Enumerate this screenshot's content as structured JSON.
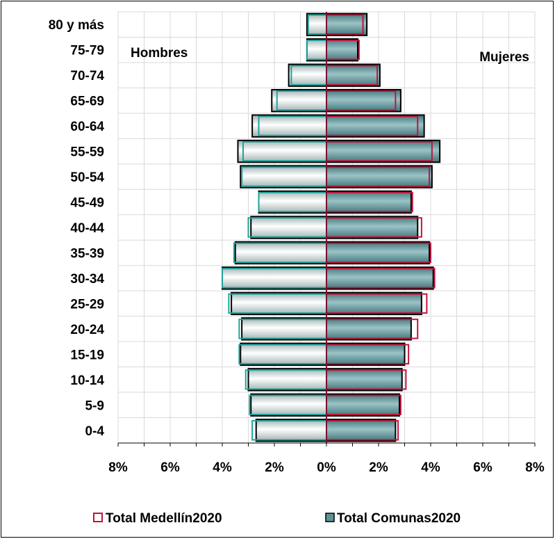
{
  "chart_data": {
    "type": "bar",
    "orientation": "horizontal",
    "subtype": "population-pyramid",
    "categories": [
      "0-4",
      "5-9",
      "10-14",
      "15-19",
      "20-24",
      "25-29",
      "30-34",
      "35-39",
      "40-44",
      "45-49",
      "50-54",
      "55-59",
      "60-64",
      "65-69",
      "70-74",
      "75-79",
      "80 y más"
    ],
    "side_labels": {
      "left": "Hombres",
      "right": "Mujeres"
    },
    "x_ticks": [
      "8%",
      "6%",
      "4%",
      "2%",
      "0%",
      "2%",
      "4%",
      "6%",
      "8%"
    ],
    "xlim": [
      -8,
      8
    ],
    "series": [
      {
        "name": "Total Medellín2020",
        "style": "outline",
        "men": [
          2.85,
          2.95,
          3.1,
          3.35,
          3.35,
          3.75,
          4.0,
          3.55,
          3.0,
          2.6,
          3.25,
          3.2,
          2.6,
          1.9,
          1.35,
          0.75,
          0.7
        ],
        "women": [
          2.75,
          2.85,
          3.05,
          3.15,
          3.5,
          3.85,
          4.15,
          4.0,
          3.65,
          3.3,
          3.95,
          4.05,
          3.5,
          2.65,
          1.95,
          1.25,
          1.4
        ]
      },
      {
        "name": "Total Comunas2020",
        "style": "filled",
        "men": [
          2.7,
          2.9,
          3.0,
          3.3,
          3.25,
          3.65,
          4.0,
          3.5,
          2.9,
          2.6,
          3.3,
          3.4,
          2.85,
          2.1,
          1.45,
          0.75,
          0.75
        ],
        "women": [
          2.65,
          2.8,
          2.9,
          3.0,
          3.25,
          3.65,
          4.1,
          3.95,
          3.5,
          3.25,
          4.05,
          4.35,
          3.75,
          2.85,
          2.05,
          1.2,
          1.55
        ]
      }
    ],
    "grid": true,
    "legend_position": "bottom",
    "colors": {
      "outline": "#C0143C",
      "outline_men": "#1FA39A",
      "filled_fill": "#5E9499",
      "filled_fill_men": "#C9D6D6",
      "bar_border": "#000000",
      "grid": "#D9D9D9",
      "axis": "#000000"
    }
  }
}
